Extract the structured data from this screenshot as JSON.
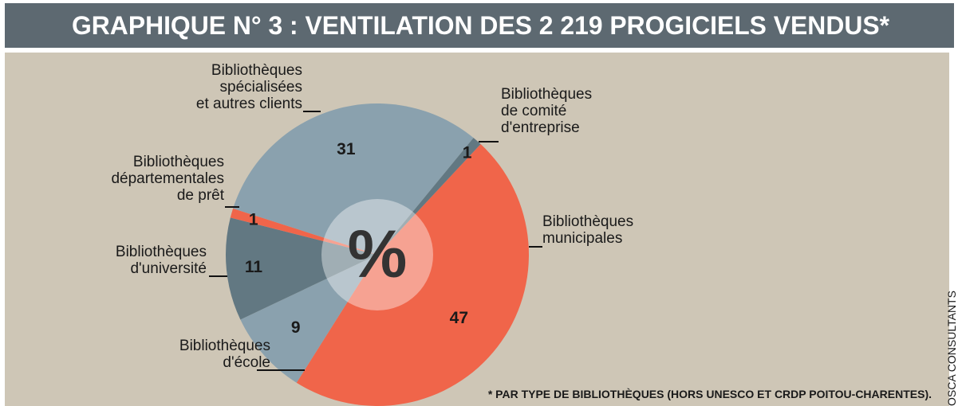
{
  "chart_data": {
    "type": "pie",
    "title": "GRAPHIQUE N° 3 : VENTILATION DES 2 219 PROGICIELS VENDUS*",
    "categories": [
      "Bibliothèques\nmunicipales",
      "Bibliothèques\nd'école",
      "Bibliothèques\nd'université",
      "Bibliothèques\ndépartementales\nde prêt",
      "Bibliothèques\nspécialisées\net autres clients",
      "Bibliothèques\nde comité\nd'entreprise"
    ],
    "values": [
      47,
      9,
      11,
      1,
      31,
      1
    ],
    "colors": [
      "#f0654a",
      "#8aa1ae",
      "#627882",
      "#f0654a",
      "#8aa1ae",
      "#627882"
    ],
    "center_label": "%",
    "footnote": "* PAR TYPE DE BIBLIOTHÈQUES (HORS UNESCO ET CRDP POITOU-CHARENTES).",
    "source": "OSCA CONSULTANTS"
  }
}
